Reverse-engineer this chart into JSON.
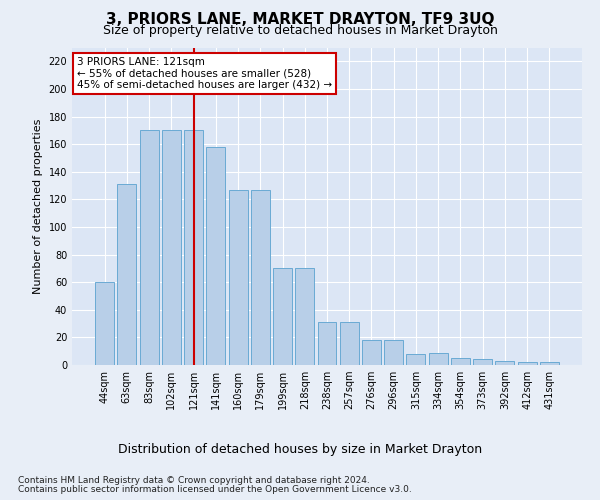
{
  "title": "3, PRIORS LANE, MARKET DRAYTON, TF9 3UQ",
  "subtitle": "Size of property relative to detached houses in Market Drayton",
  "xlabel": "Distribution of detached houses by size in Market Drayton",
  "ylabel": "Number of detached properties",
  "footer_line1": "Contains HM Land Registry data © Crown copyright and database right 2024.",
  "footer_line2": "Contains public sector information licensed under the Open Government Licence v3.0.",
  "categories": [
    "44sqm",
    "63sqm",
    "83sqm",
    "102sqm",
    "121sqm",
    "141sqm",
    "160sqm",
    "179sqm",
    "199sqm",
    "218sqm",
    "238sqm",
    "257sqm",
    "276sqm",
    "296sqm",
    "315sqm",
    "334sqm",
    "354sqm",
    "373sqm",
    "392sqm",
    "412sqm",
    "431sqm"
  ],
  "values": [
    60,
    131,
    170,
    170,
    170,
    158,
    127,
    127,
    70,
    70,
    31,
    31,
    18,
    18,
    8,
    9,
    5,
    4,
    3,
    2,
    2
  ],
  "bar_color": "#b8cfe8",
  "bar_edge_color": "#6aaad4",
  "highlight_index": 4,
  "highlight_line_color": "#cc0000",
  "annotation_text": "3 PRIORS LANE: 121sqm\n← 55% of detached houses are smaller (528)\n45% of semi-detached houses are larger (432) →",
  "annotation_box_color": "#ffffff",
  "annotation_box_edge_color": "#cc0000",
  "ylim": [
    0,
    230
  ],
  "yticks": [
    0,
    20,
    40,
    60,
    80,
    100,
    120,
    140,
    160,
    180,
    200,
    220
  ],
  "background_color": "#e8eef7",
  "plot_bg_color": "#dce6f5",
  "grid_color": "#ffffff",
  "title_fontsize": 11,
  "subtitle_fontsize": 9,
  "xlabel_fontsize": 9,
  "ylabel_fontsize": 8,
  "tick_fontsize": 7,
  "annotation_fontsize": 7.5,
  "footer_fontsize": 6.5
}
